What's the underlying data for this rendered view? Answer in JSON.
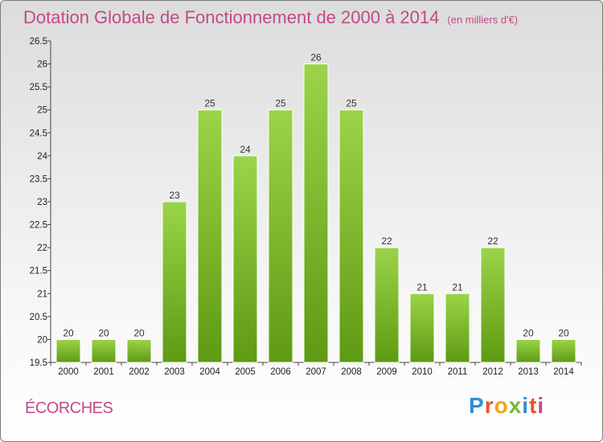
{
  "header": {
    "title": "Dotation Globale de Fonctionnement de 2000 à 2014",
    "unit": "(en milliers d'€)"
  },
  "footer": {
    "town": "ÉCORCHES",
    "logo_text": "Proxiti"
  },
  "colors": {
    "bar_light": "#9bd44a",
    "bar_dark": "#5e9a12",
    "accent": "#c24a85"
  },
  "chart_data": {
    "type": "bar",
    "title": "Dotation Globale de Fonctionnement de 2000 à 2014",
    "subtitle": "(en milliers d'€)",
    "xlabel": "",
    "ylabel": "",
    "categories": [
      "2000",
      "2001",
      "2002",
      "2003",
      "2004",
      "2005",
      "2006",
      "2007",
      "2008",
      "2009",
      "2010",
      "2011",
      "2012",
      "2013",
      "2014"
    ],
    "values": [
      20,
      20,
      20,
      23,
      25,
      24,
      25,
      26,
      25,
      22,
      21,
      21,
      22,
      20,
      20
    ],
    "ylim": [
      19.5,
      26.5
    ],
    "yticks": [
      "19.5",
      "20",
      "20.5",
      "21",
      "21.5",
      "22",
      "22.5",
      "23",
      "23.5",
      "24",
      "24.5",
      "25",
      "25.5",
      "26",
      "26.5"
    ],
    "grid": false,
    "legend": "none"
  }
}
